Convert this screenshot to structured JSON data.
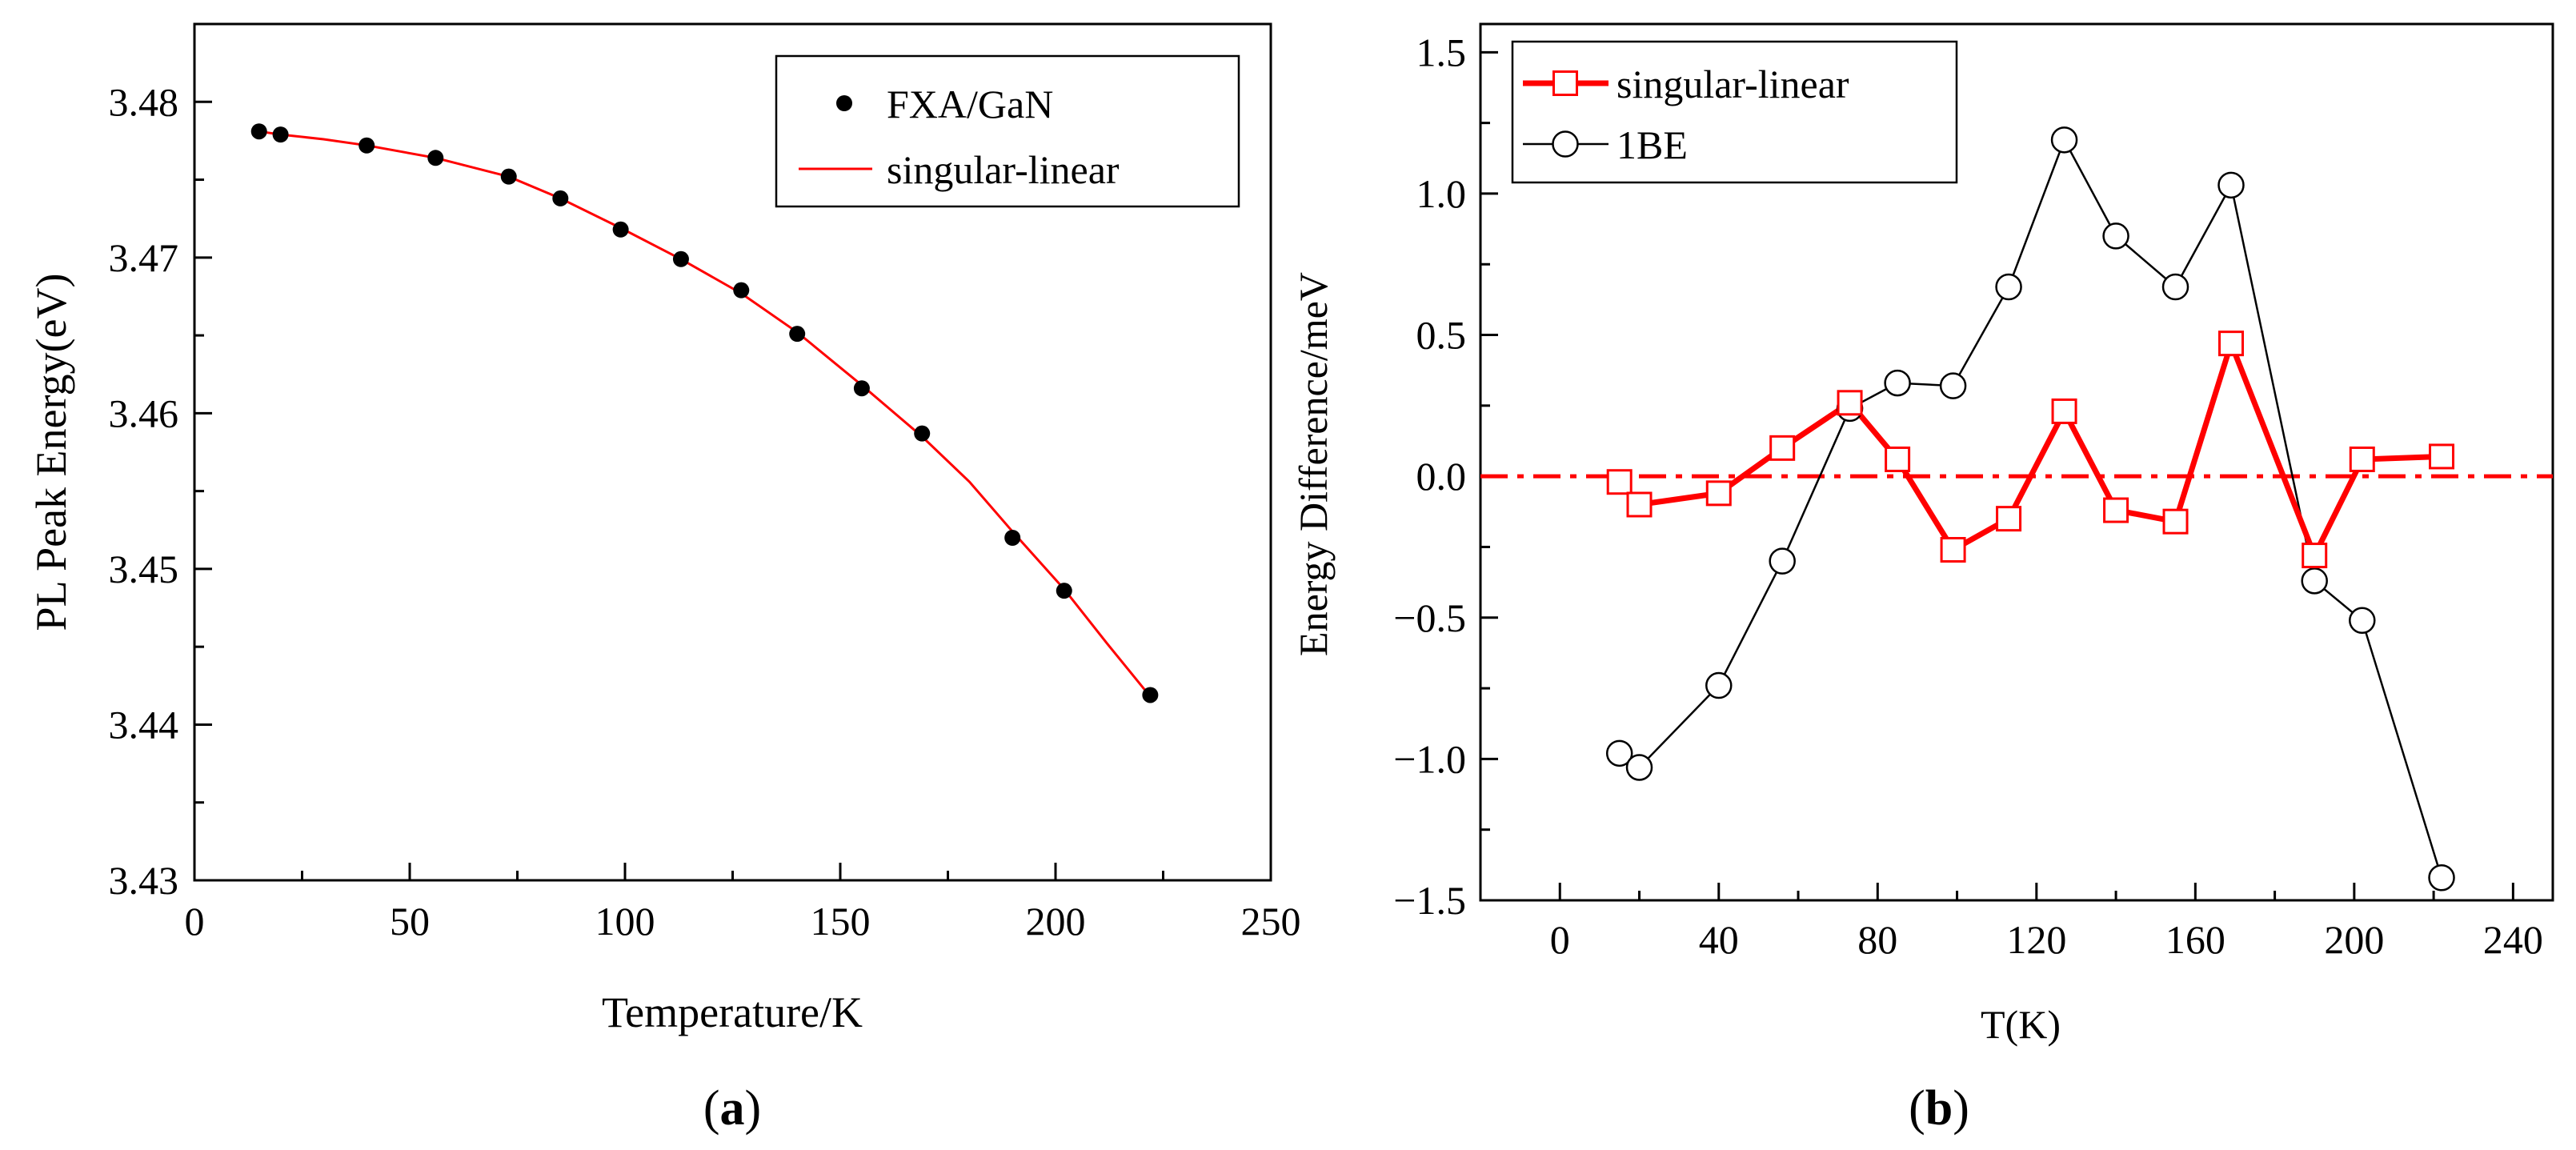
{
  "chart_data": [
    {
      "type": "scatter",
      "panel_label": "a",
      "xlabel": "Temperature/K",
      "ylabel": "PL Peak Energy(eV)",
      "xlim": [
        0,
        250
      ],
      "ylim": [
        3.43,
        3.485
      ],
      "xticks": [
        "0",
        "50",
        "100",
        "150",
        "200",
        "250"
      ],
      "yticks": [
        "3.43",
        "3.44",
        "3.45",
        "3.46",
        "3.47",
        "3.48"
      ],
      "legend_position": "top-right",
      "series": [
        {
          "name": "FXA/GaN",
          "kind": "points",
          "color": "#000000",
          "x": [
            15,
            20,
            40,
            56,
            73,
            85,
            99,
            113,
            127,
            140,
            155,
            169,
            190,
            202,
            222
          ],
          "y": [
            3.4781,
            3.4779,
            3.4772,
            3.4764,
            3.4752,
            3.4738,
            3.4718,
            3.4699,
            3.4679,
            3.4651,
            3.4616,
            3.4587,
            3.452,
            3.4486,
            3.4419
          ]
        },
        {
          "name": "singular-linear",
          "kind": "line",
          "color": "#ff0000",
          "x": [
            15,
            20,
            30,
            40,
            56,
            73,
            85,
            99,
            113,
            127,
            140,
            155,
            169,
            180,
            190,
            202,
            212,
            222
          ],
          "y": [
            3.4781,
            3.4779,
            3.4776,
            3.4772,
            3.4764,
            3.4752,
            3.4738,
            3.4719,
            3.4699,
            3.4677,
            3.4652,
            3.4618,
            3.4585,
            3.4556,
            3.4524,
            3.4487,
            3.4452,
            3.4418
          ]
        }
      ]
    },
    {
      "type": "line",
      "panel_label": "b",
      "xlabel": "T(K)",
      "ylabel": "Energy Difference/meV",
      "xlim": [
        -20,
        250
      ],
      "ylim": [
        -1.5,
        1.6
      ],
      "xticks": [
        "0",
        "40",
        "80",
        "120",
        "160",
        "200",
        "240"
      ],
      "yticks": [
        "−1.5",
        "−1.0",
        "−0.5",
        "0.0",
        "0.5",
        "1.0",
        "1.5"
      ],
      "legend_position": "top-left",
      "reference_line": {
        "y": 0.0,
        "style": "dash-dot",
        "color": "#ff0000"
      },
      "series": [
        {
          "name": "singular-linear",
          "marker": "open-square",
          "color": "#ff0000",
          "x": [
            15,
            20,
            40,
            56,
            73,
            85,
            99,
            113,
            127,
            140,
            155,
            169,
            190,
            202,
            222
          ],
          "y": [
            -0.02,
            -0.1,
            -0.06,
            0.1,
            0.26,
            0.06,
            -0.26,
            -0.15,
            0.23,
            -0.12,
            -0.16,
            0.47,
            -0.28,
            0.06,
            0.07
          ]
        },
        {
          "name": "1BE",
          "marker": "open-circle",
          "color": "#000000",
          "x": [
            15,
            20,
            40,
            56,
            73,
            85,
            99,
            113,
            127,
            140,
            155,
            169,
            190,
            202,
            222
          ],
          "y": [
            -0.98,
            -1.03,
            -0.74,
            -0.3,
            0.24,
            0.33,
            0.32,
            0.67,
            1.19,
            0.85,
            0.67,
            1.03,
            -0.37,
            -0.51,
            -1.42
          ]
        }
      ]
    }
  ]
}
